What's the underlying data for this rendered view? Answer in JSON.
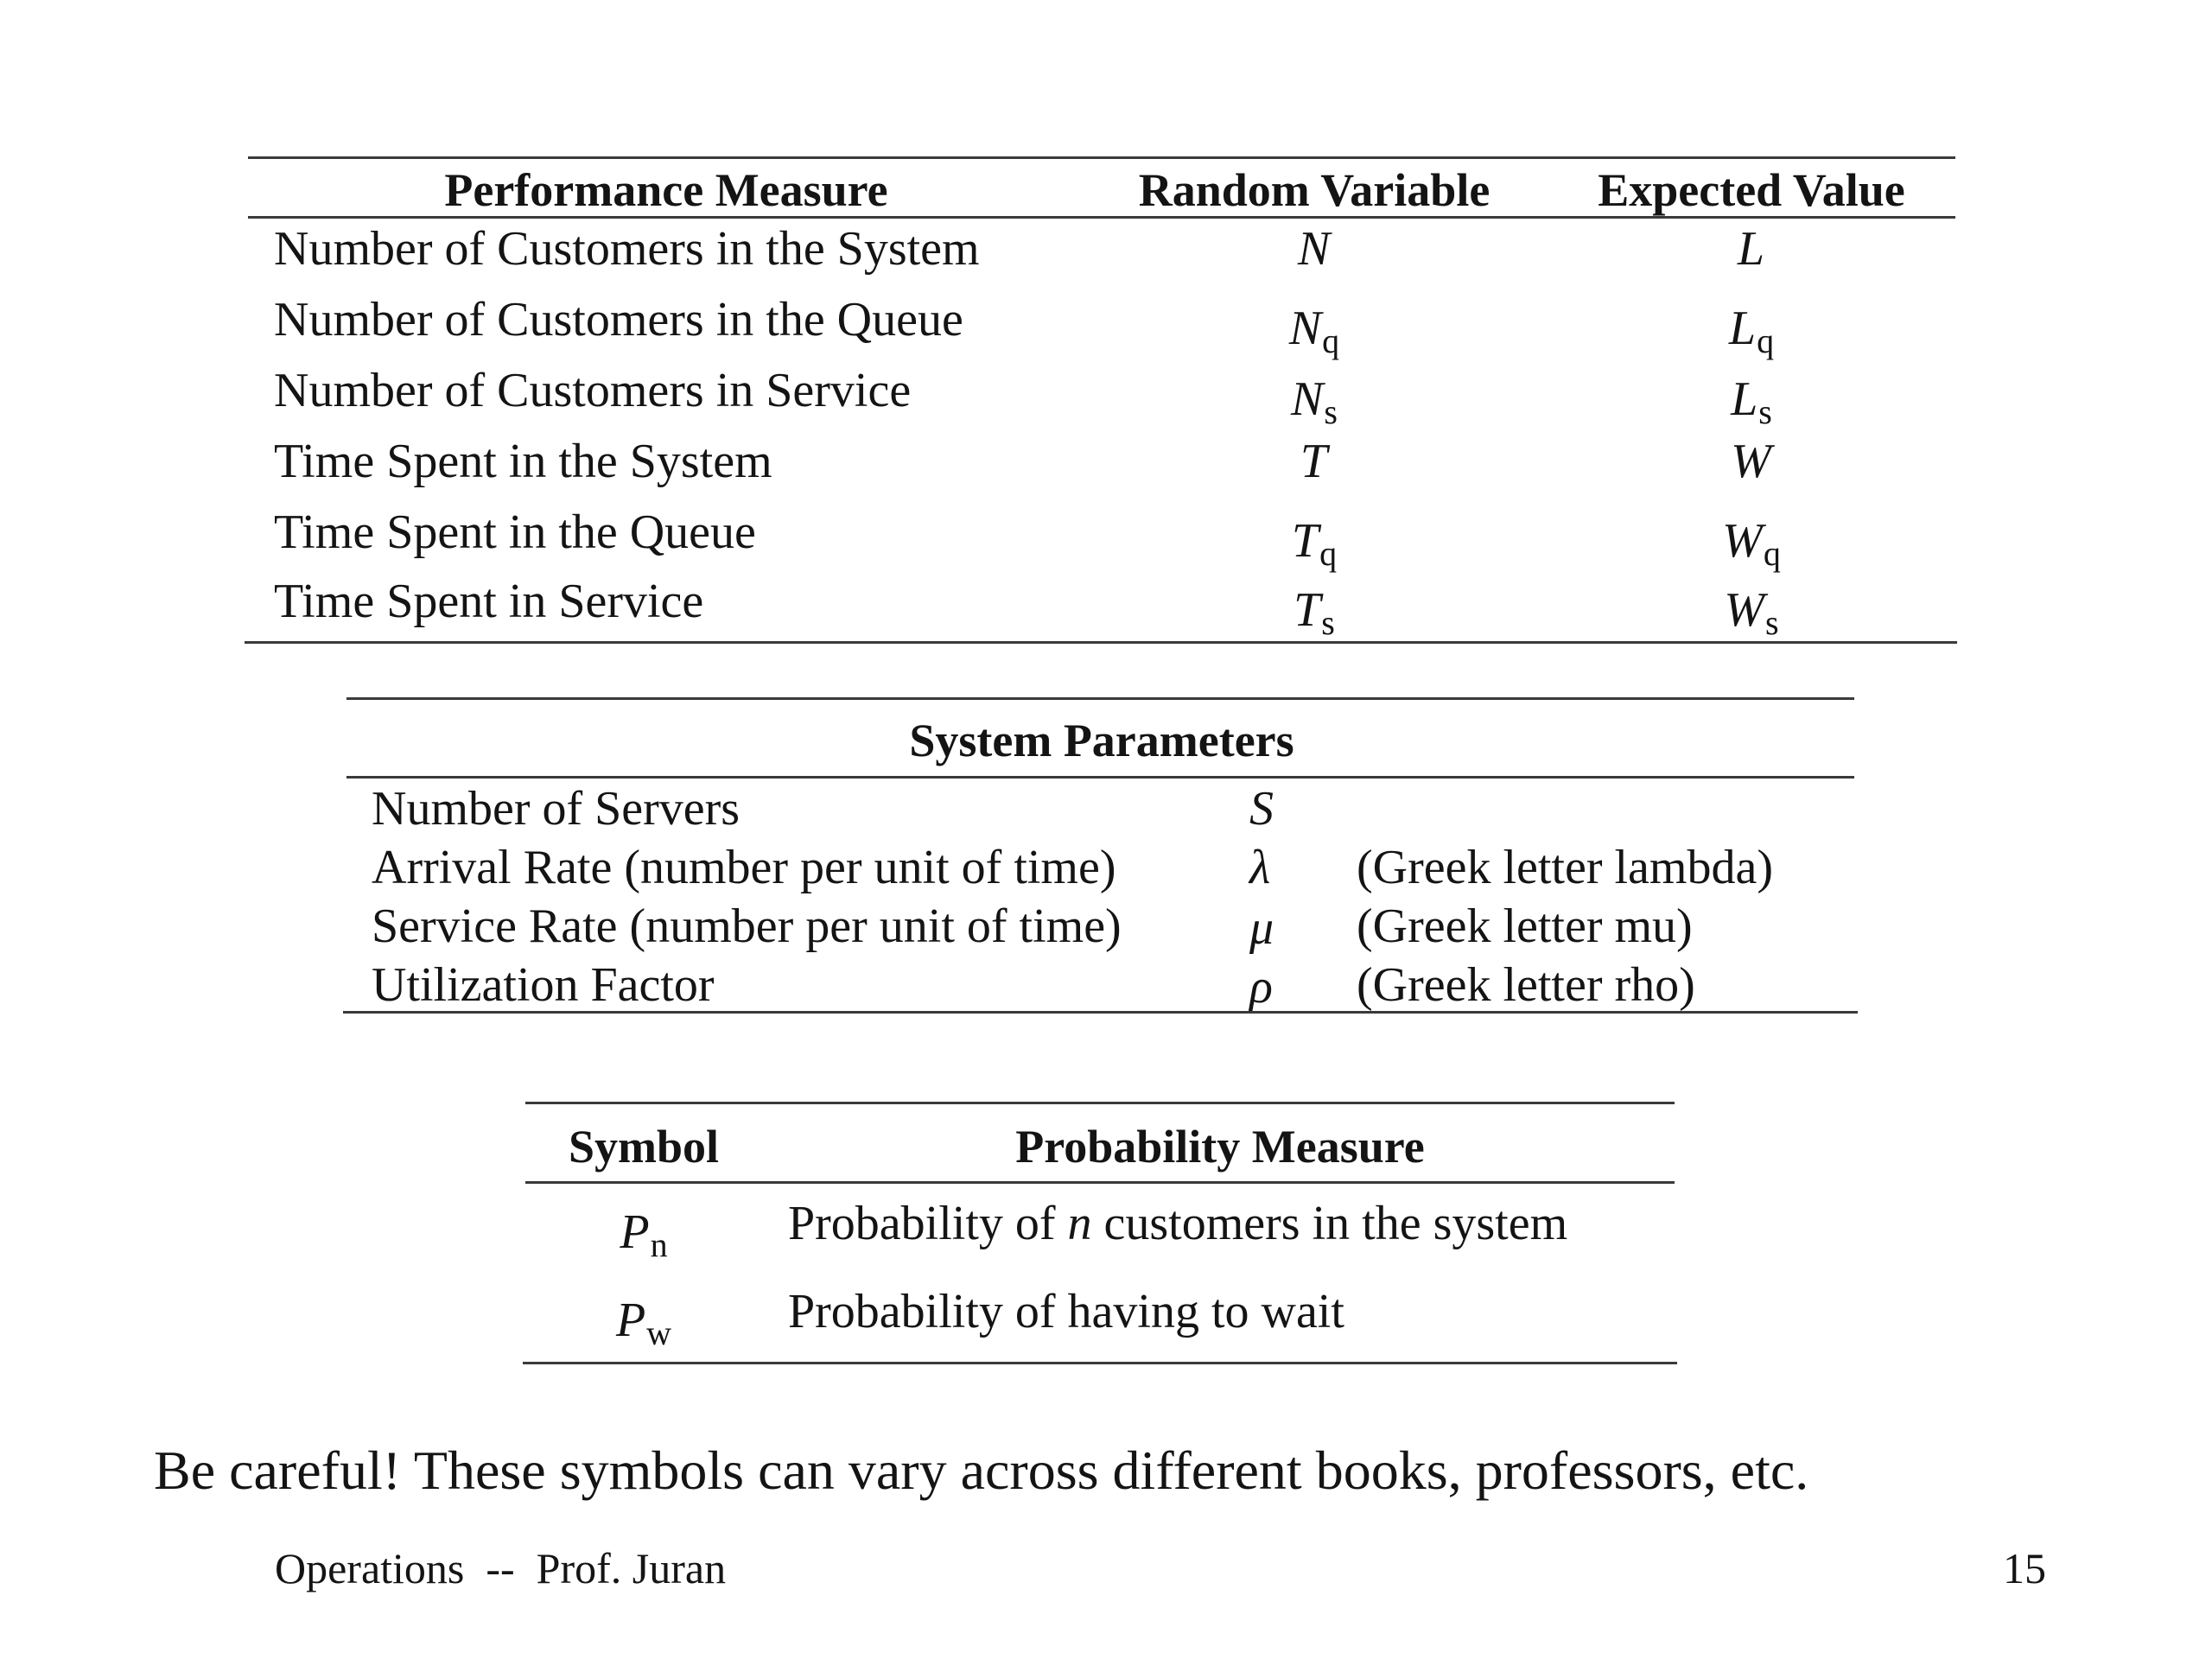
{
  "performance_table": {
    "headers": [
      "Performance Measure",
      "Random Variable",
      "Expected Value"
    ],
    "rows": [
      {
        "measure": "Number of Customers in the System",
        "rv": "N",
        "rv_sub": "",
        "ev": "L",
        "ev_sub": ""
      },
      {
        "measure": "Number of Customers in the Queue",
        "rv": "N",
        "rv_sub": "q",
        "ev": "L",
        "ev_sub": "q"
      },
      {
        "measure": "Number of Customers in Service",
        "rv": "N",
        "rv_sub": "s",
        "ev": "L",
        "ev_sub": "s"
      },
      {
        "measure": "Time Spent in the System",
        "rv": "T",
        "rv_sub": "",
        "ev": "W",
        "ev_sub": ""
      },
      {
        "measure": "Time Spent in the Queue",
        "rv": "T",
        "rv_sub": "q",
        "ev": "W",
        "ev_sub": "q"
      },
      {
        "measure": "Time Spent in Service",
        "rv": "T",
        "rv_sub": "s",
        "ev": "W",
        "ev_sub": "s"
      }
    ]
  },
  "parameters_table": {
    "header": "System Parameters",
    "rows": [
      {
        "name": "Number of Servers",
        "symbol": "S",
        "note": ""
      },
      {
        "name": "Arrival Rate (number per unit of time)",
        "symbol": "λ",
        "note": "(Greek letter lambda)"
      },
      {
        "name": "Service Rate (number per unit of time)",
        "symbol": "μ",
        "note": "(Greek letter mu)"
      },
      {
        "name": "Utilization Factor",
        "symbol": "ρ",
        "note": "(Greek letter rho)"
      }
    ]
  },
  "probability_table": {
    "headers": [
      "Symbol",
      "Probability Measure"
    ],
    "rows": [
      {
        "symbol": "P",
        "symbol_sub": "n",
        "text_before": "Probability of ",
        "text_italic": "n",
        "text_after": " customers in the system"
      },
      {
        "symbol": "P",
        "symbol_sub": "w",
        "text_before": "Probability of having to wait",
        "text_italic": "",
        "text_after": ""
      }
    ]
  },
  "note": "Be careful! These symbols can vary across different books, professors, etc.",
  "footer": {
    "left": "Operations  --  Prof. Juran",
    "page_number": "15"
  }
}
